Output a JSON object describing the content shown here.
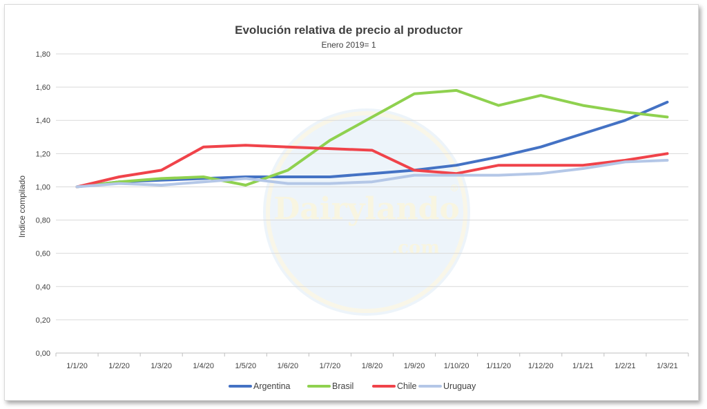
{
  "watermark": {
    "brand": "Dairylando",
    "domain": ".com",
    "mark": "®"
  },
  "chart_data": {
    "type": "line",
    "title": "Evolución relativa de precio al productor",
    "subtitle": "Enero 2019= 1",
    "ylabel": "Indice compilado",
    "xlabel": "",
    "categories": [
      "1/1/20",
      "1/2/20",
      "1/3/20",
      "1/4/20",
      "1/5/20",
      "1/6/20",
      "1/7/20",
      "1/8/20",
      "1/9/20",
      "1/10/20",
      "1/11/20",
      "1/12/20",
      "1/1/21",
      "1/2/21",
      "1/3/21"
    ],
    "ylim": [
      0,
      1.8
    ],
    "yticks": [
      "0,00",
      "0,20",
      "0,40",
      "0,60",
      "0,80",
      "1,00",
      "1,20",
      "1,40",
      "1,60",
      "1,80"
    ],
    "ytick_values": [
      0,
      0.2,
      0.4,
      0.6,
      0.8,
      1.0,
      1.2,
      1.4,
      1.6,
      1.8
    ],
    "grid": true,
    "legend_position": "bottom",
    "series": [
      {
        "name": "Argentina",
        "color": "#4472c4",
        "values": [
          1.0,
          1.03,
          1.04,
          1.05,
          1.06,
          1.06,
          1.06,
          1.08,
          1.1,
          1.13,
          1.18,
          1.24,
          1.32,
          1.4,
          1.51
        ]
      },
      {
        "name": "Brasil",
        "color": "#8fd14f",
        "values": [
          1.0,
          1.03,
          1.05,
          1.06,
          1.01,
          1.1,
          1.28,
          1.42,
          1.56,
          1.58,
          1.49,
          1.55,
          1.49,
          1.45,
          1.42
        ]
      },
      {
        "name": "Chile",
        "color": "#f0434a",
        "values": [
          1.0,
          1.06,
          1.1,
          1.24,
          1.25,
          1.24,
          1.23,
          1.22,
          1.1,
          1.08,
          1.13,
          1.13,
          1.13,
          1.16,
          1.2
        ]
      },
      {
        "name": "Uruguay",
        "color": "#b4c7e7",
        "values": [
          1.0,
          1.02,
          1.01,
          1.03,
          1.05,
          1.02,
          1.02,
          1.03,
          1.07,
          1.07,
          1.07,
          1.08,
          1.11,
          1.15,
          1.16
        ]
      }
    ]
  }
}
